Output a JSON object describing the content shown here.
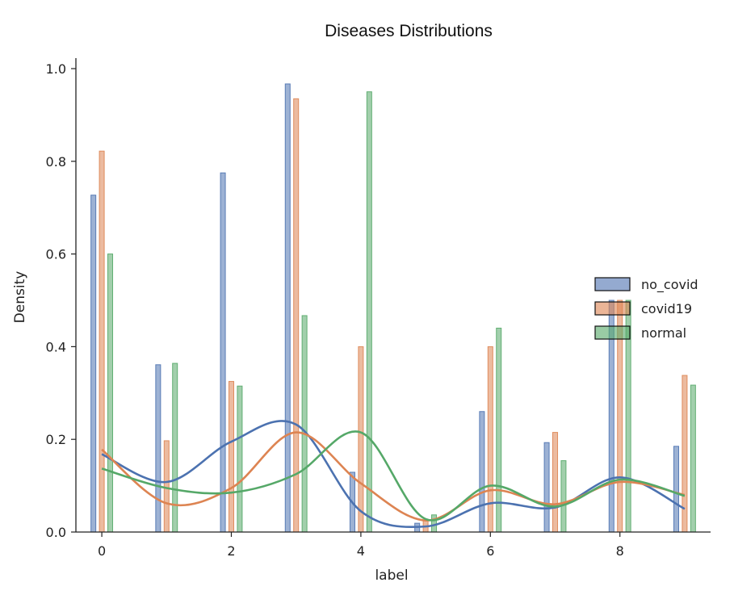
{
  "chart_data": {
    "type": "bar",
    "title": "Diseases Distributions",
    "xlabel": "label",
    "ylabel": "Density",
    "xlim": [
      -0.4,
      9.4
    ],
    "ylim": [
      0,
      1.0
    ],
    "xticks": [
      "0",
      "2",
      "4",
      "6",
      "8"
    ],
    "yticks": [
      "0.0",
      "0.2",
      "0.4",
      "0.6",
      "0.8",
      "1.0"
    ],
    "legend_position": "center-right",
    "categories": [
      0,
      1,
      2,
      3,
      4,
      5,
      6,
      7,
      8,
      9
    ],
    "series": [
      {
        "name": "no_covid",
        "color": "#4c72b0",
        "values": [
          0.727,
          0.361,
          0.775,
          0.967,
          0.129,
          0.019,
          0.26,
          0.193,
          0.5,
          0.185
        ],
        "kde": [
          0.168,
          0.108,
          0.195,
          0.232,
          0.045,
          0.012,
          0.062,
          0.053,
          0.118,
          0.05
        ]
      },
      {
        "name": "covid19",
        "color": "#dd8452",
        "values": [
          0.822,
          0.197,
          0.325,
          0.935,
          0.4,
          0.025,
          0.4,
          0.215,
          0.5,
          0.338
        ],
        "kde": [
          0.178,
          0.062,
          0.095,
          0.215,
          0.105,
          0.025,
          0.09,
          0.06,
          0.108,
          0.08
        ]
      },
      {
        "name": "normal",
        "color": "#55a868",
        "values": [
          0.6,
          0.364,
          0.315,
          0.467,
          0.95,
          0.037,
          0.44,
          0.154,
          0.5,
          0.317
        ],
        "kde": [
          0.137,
          0.095,
          0.085,
          0.125,
          0.215,
          0.028,
          0.1,
          0.055,
          0.113,
          0.078
        ]
      }
    ]
  }
}
